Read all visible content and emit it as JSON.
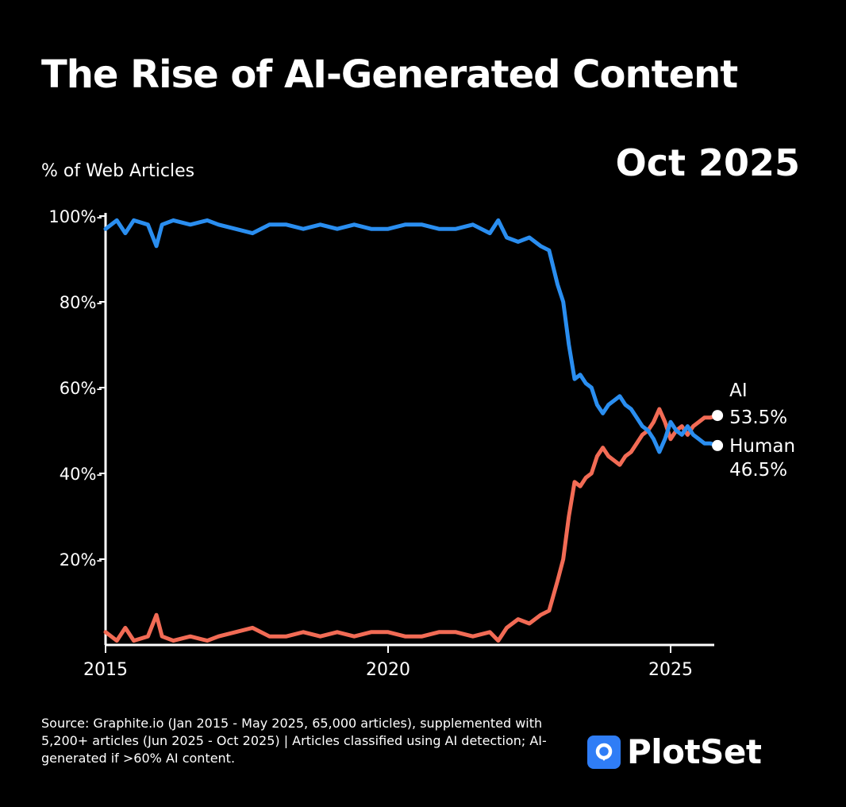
{
  "title": "The Rise of AI-Generated Content",
  "period_label": "Oct 2025",
  "source_text": "Source: Graphite.io (Jan 2015 - May 2025, 65,000 articles), supplemented with 5,200+ articles (Jun 2025 - Oct 2025) | Articles classified using AI detection; AI-generated if >60% AI content.",
  "brand": {
    "name": "PlotSet",
    "icon": "plotset-logo-icon"
  },
  "chart_data": {
    "type": "line",
    "ylabel": "% of Web Articles",
    "xlim": [
      2015,
      2025.83
    ],
    "ylim": [
      0,
      100
    ],
    "x_ticks": [
      {
        "value": 2015,
        "label": "2015"
      },
      {
        "value": 2020,
        "label": "2020"
      },
      {
        "value": 2025,
        "label": "2025"
      }
    ],
    "y_ticks": [
      {
        "value": 20,
        "label": "20%-"
      },
      {
        "value": 40,
        "label": "40%-"
      },
      {
        "value": 60,
        "label": "60%-"
      },
      {
        "value": 80,
        "label": "80%-"
      },
      {
        "value": 100,
        "label": "100%-"
      }
    ],
    "grid": false,
    "colors": {
      "ai": "#f26b55",
      "human": "#2a8ef0",
      "background": "#000000"
    },
    "series": [
      {
        "key": "ai",
        "name": "AI",
        "end_label": "53.5%",
        "x": [
          2015.0,
          2015.2,
          2015.35,
          2015.5,
          2015.75,
          2015.9,
          2016.0,
          2016.2,
          2016.5,
          2016.8,
          2017.0,
          2017.3,
          2017.6,
          2017.9,
          2018.2,
          2018.5,
          2018.8,
          2019.1,
          2019.4,
          2019.7,
          2020.0,
          2020.3,
          2020.6,
          2020.9,
          2021.2,
          2021.5,
          2021.8,
          2021.95,
          2022.1,
          2022.3,
          2022.5,
          2022.7,
          2022.85,
          2023.0,
          2023.1,
          2023.2,
          2023.3,
          2023.4,
          2023.5,
          2023.6,
          2023.7,
          2023.8,
          2023.9,
          2024.0,
          2024.1,
          2024.2,
          2024.3,
          2024.4,
          2024.5,
          2024.6,
          2024.7,
          2024.8,
          2024.9,
          2025.0,
          2025.1,
          2025.2,
          2025.3,
          2025.4,
          2025.5,
          2025.6,
          2025.7,
          2025.83
        ],
        "values": [
          3,
          1,
          4,
          1,
          2,
          7,
          2,
          1,
          2,
          1,
          2,
          3,
          4,
          2,
          2,
          3,
          2,
          3,
          2,
          3,
          3,
          2,
          2,
          3,
          3,
          2,
          3,
          1,
          4,
          6,
          5,
          7,
          8,
          15,
          20,
          30,
          38,
          37,
          39,
          40,
          44,
          46,
          44,
          43,
          42,
          44,
          45,
          47,
          49,
          50,
          52,
          55,
          52,
          48,
          50,
          51,
          49,
          51,
          52,
          53,
          53,
          53.5
        ]
      },
      {
        "key": "human",
        "name": "Human",
        "end_label": "46.5%",
        "x": [
          2015.0,
          2015.2,
          2015.35,
          2015.5,
          2015.75,
          2015.9,
          2016.0,
          2016.2,
          2016.5,
          2016.8,
          2017.0,
          2017.3,
          2017.6,
          2017.9,
          2018.2,
          2018.5,
          2018.8,
          2019.1,
          2019.4,
          2019.7,
          2020.0,
          2020.3,
          2020.6,
          2020.9,
          2021.2,
          2021.5,
          2021.8,
          2021.95,
          2022.1,
          2022.3,
          2022.5,
          2022.7,
          2022.85,
          2023.0,
          2023.1,
          2023.2,
          2023.3,
          2023.4,
          2023.5,
          2023.6,
          2023.7,
          2023.8,
          2023.9,
          2024.0,
          2024.1,
          2024.2,
          2024.3,
          2024.4,
          2024.5,
          2024.6,
          2024.7,
          2024.8,
          2024.9,
          2025.0,
          2025.1,
          2025.2,
          2025.3,
          2025.4,
          2025.5,
          2025.6,
          2025.7,
          2025.83
        ],
        "values": [
          97,
          99,
          96,
          99,
          98,
          93,
          98,
          99,
          98,
          99,
          98,
          97,
          96,
          98,
          98,
          97,
          98,
          97,
          98,
          97,
          97,
          98,
          98,
          97,
          97,
          98,
          96,
          99,
          95,
          94,
          95,
          93,
          92,
          84,
          80,
          70,
          62,
          63,
          61,
          60,
          56,
          54,
          56,
          57,
          58,
          56,
          55,
          53,
          51,
          50,
          48,
          45,
          48,
          52,
          50,
          49,
          51,
          49,
          48,
          47,
          47,
          46.5
        ]
      }
    ]
  }
}
